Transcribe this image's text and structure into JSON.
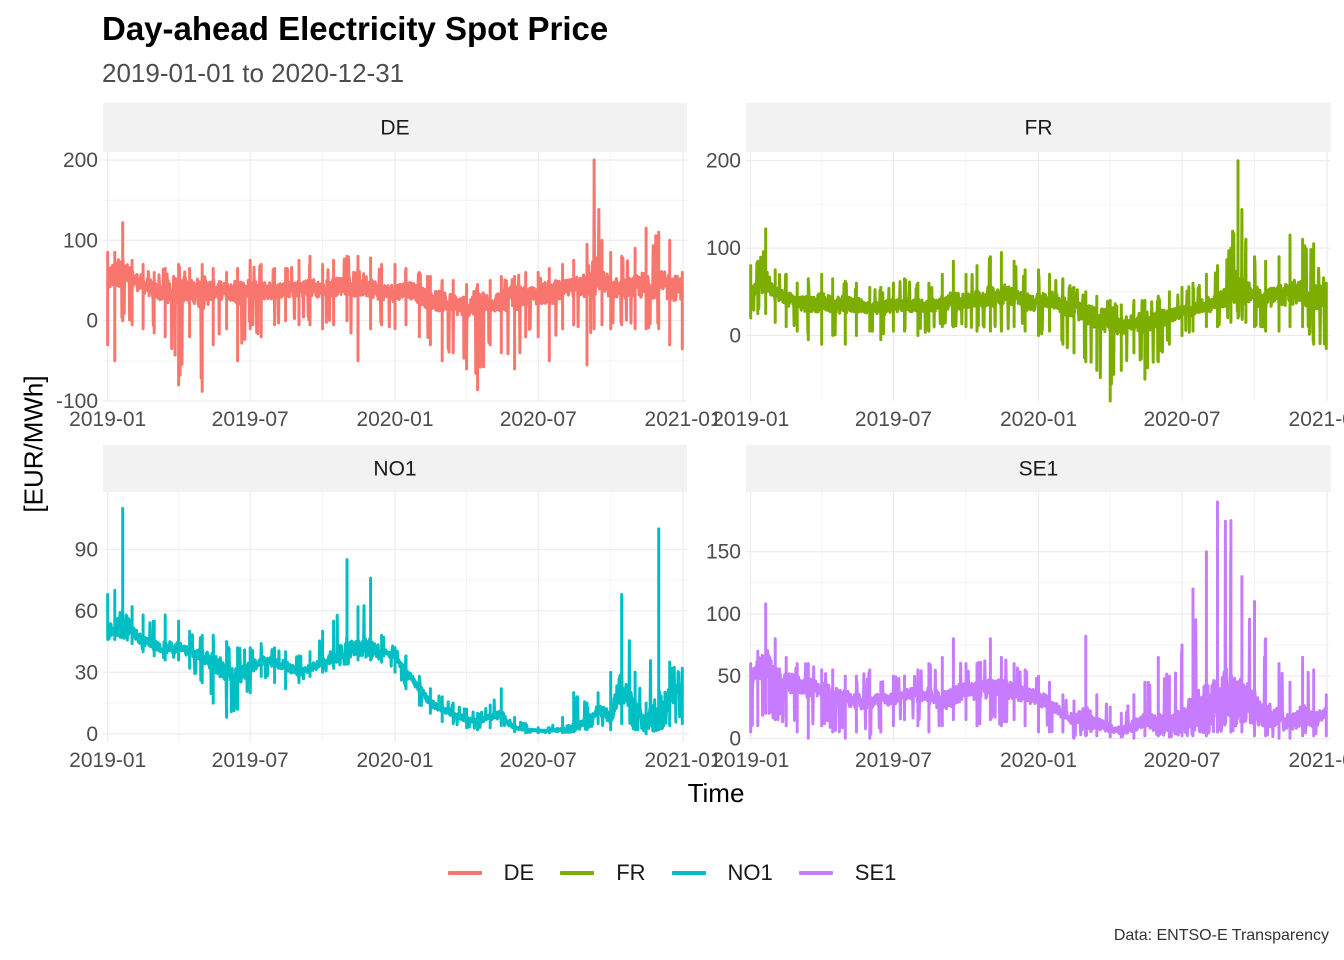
{
  "title": "Day-ahead Electricity Spot Price",
  "subtitle": "2019-01-01 to 2020-12-31",
  "caption": "Data: ENTSO-E Transparency",
  "legend_items": [
    {
      "label": "DE",
      "color": "#F8766D"
    },
    {
      "label": "FR",
      "color": "#7CAE00"
    },
    {
      "label": "NO1",
      "color": "#00BFC4"
    },
    {
      "label": "SE1",
      "color": "#C77CFF"
    }
  ],
  "chart_data": {
    "type": "line",
    "xlabel": "Time",
    "ylabel": "[EUR/MWh]",
    "grid": true,
    "legend_position": "bottom",
    "x_ticks": [
      "2019-01",
      "2019-07",
      "2020-01",
      "2020-07",
      "2021-01"
    ],
    "xlim": [
      "2018-12-26",
      "2021-01-06"
    ],
    "panels": [
      {
        "strip": "DE",
        "color": "#F8766D",
        "ylim": [
          -100,
          210
        ],
        "y_ticks": [
          200,
          100,
          0,
          -100
        ],
        "series": {
          "x": [
            "2019-01-01",
            "2019-01-10",
            "2019-01-20",
            "2019-02-01",
            "2019-02-15",
            "2019-03-01",
            "2019-03-15",
            "2019-04-01",
            "2019-04-15",
            "2019-05-01",
            "2019-05-15",
            "2019-06-01",
            "2019-06-15",
            "2019-07-01",
            "2019-07-15",
            "2019-08-01",
            "2019-08-15",
            "2019-09-01",
            "2019-09-15",
            "2019-10-01",
            "2019-10-15",
            "2019-11-01",
            "2019-11-15",
            "2019-12-01",
            "2019-12-15",
            "2020-01-01",
            "2020-01-15",
            "2020-02-01",
            "2020-02-15",
            "2020-03-01",
            "2020-03-15",
            "2020-04-01",
            "2020-04-15",
            "2020-05-01",
            "2020-05-15",
            "2020-06-01",
            "2020-06-15",
            "2020-07-01",
            "2020-07-15",
            "2020-08-01",
            "2020-08-15",
            "2020-09-01",
            "2020-09-10",
            "2020-09-20",
            "2020-10-01",
            "2020-10-15",
            "2020-11-01",
            "2020-11-15",
            "2020-12-01",
            "2020-12-15",
            "2020-12-31"
          ],
          "center": [
            50,
            58,
            62,
            52,
            45,
            38,
            35,
            40,
            38,
            35,
            38,
            37,
            35,
            40,
            38,
            37,
            38,
            40,
            42,
            38,
            42,
            44,
            46,
            42,
            35,
            35,
            40,
            32,
            25,
            25,
            20,
            18,
            20,
            22,
            25,
            28,
            30,
            32,
            35,
            38,
            42,
            48,
            55,
            50,
            42,
            40,
            42,
            45,
            45,
            42,
            40
          ],
          "low": [
            -30,
            -50,
            0,
            -5,
            -10,
            -15,
            -20,
            -80,
            -20,
            -88,
            -30,
            -10,
            -50,
            -10,
            -20,
            -5,
            0,
            -5,
            -5,
            -10,
            -5,
            0,
            -50,
            -10,
            -5,
            -10,
            -5,
            -20,
            -30,
            -50,
            -40,
            -60,
            -86,
            -30,
            -40,
            -60,
            -20,
            -20,
            -50,
            -10,
            -5,
            -55,
            -10,
            -5,
            -10,
            -5,
            -10,
            -10,
            -10,
            -30,
            -35
          ],
          "high": [
            85,
            85,
            122,
            75,
            70,
            60,
            65,
            70,
            65,
            70,
            65,
            60,
            65,
            75,
            70,
            65,
            65,
            75,
            80,
            70,
            75,
            80,
            80,
            78,
            70,
            70,
            65,
            60,
            55,
            50,
            50,
            45,
            45,
            50,
            55,
            55,
            60,
            60,
            65,
            70,
            75,
            95,
            200,
            100,
            85,
            80,
            90,
            115,
            110,
            100,
            60
          ]
        }
      },
      {
        "strip": "FR",
        "color": "#7CAE00",
        "ylim": [
          -75,
          210
        ],
        "y_ticks": [
          200,
          100,
          0
        ],
        "series": {
          "x": [
            "2019-01-01",
            "2019-01-10",
            "2019-01-20",
            "2019-02-01",
            "2019-02-15",
            "2019-03-01",
            "2019-03-15",
            "2019-04-01",
            "2019-04-15",
            "2019-05-01",
            "2019-05-15",
            "2019-06-01",
            "2019-06-15",
            "2019-07-01",
            "2019-07-15",
            "2019-08-01",
            "2019-08-15",
            "2019-09-01",
            "2019-09-15",
            "2019-10-01",
            "2019-10-15",
            "2019-11-01",
            "2019-11-15",
            "2019-12-01",
            "2019-12-15",
            "2020-01-01",
            "2020-01-15",
            "2020-02-01",
            "2020-02-15",
            "2020-03-01",
            "2020-03-15",
            "2020-04-01",
            "2020-04-15",
            "2020-05-01",
            "2020-05-15",
            "2020-06-01",
            "2020-06-15",
            "2020-07-01",
            "2020-07-15",
            "2020-08-01",
            "2020-08-15",
            "2020-09-01",
            "2020-09-10",
            "2020-09-20",
            "2020-10-01",
            "2020-10-15",
            "2020-11-01",
            "2020-11-15",
            "2020-12-01",
            "2020-12-15",
            "2020-12-31"
          ],
          "center": [
            50,
            55,
            62,
            48,
            42,
            38,
            35,
            38,
            35,
            35,
            35,
            32,
            30,
            35,
            35,
            33,
            32,
            38,
            40,
            38,
            42,
            45,
            48,
            45,
            38,
            38,
            42,
            35,
            30,
            25,
            20,
            15,
            12,
            14,
            16,
            18,
            22,
            28,
            30,
            35,
            38,
            48,
            55,
            50,
            45,
            42,
            45,
            50,
            48,
            45,
            45
          ],
          "low": [
            20,
            25,
            25,
            15,
            10,
            5,
            -5,
            -10,
            0,
            -10,
            0,
            5,
            -5,
            5,
            5,
            0,
            5,
            10,
            10,
            10,
            5,
            5,
            5,
            10,
            5,
            0,
            5,
            -10,
            -20,
            -30,
            -40,
            -75,
            -40,
            -20,
            -50,
            -30,
            -10,
            0,
            5,
            10,
            10,
            15,
            20,
            15,
            10,
            5,
            5,
            10,
            10,
            -10,
            -15
          ],
          "high": [
            80,
            85,
            122,
            75,
            70,
            60,
            65,
            70,
            65,
            62,
            60,
            55,
            55,
            60,
            65,
            60,
            60,
            70,
            85,
            70,
            80,
            90,
            95,
            85,
            75,
            75,
            70,
            65,
            55,
            50,
            45,
            40,
            35,
            40,
            40,
            45,
            50,
            55,
            60,
            70,
            80,
            100,
            200,
            110,
            90,
            85,
            90,
            115,
            110,
            105,
            60
          ]
        }
      },
      {
        "strip": "NO1",
        "color": "#00BFC4",
        "ylim": [
          -4,
          118
        ],
        "y_ticks": [
          90,
          60,
          30,
          0
        ],
        "series": {
          "x": [
            "2019-01-01",
            "2019-01-10",
            "2019-01-20",
            "2019-02-01",
            "2019-02-15",
            "2019-03-01",
            "2019-03-15",
            "2019-04-01",
            "2019-04-15",
            "2019-05-01",
            "2019-05-15",
            "2019-06-01",
            "2019-06-15",
            "2019-07-01",
            "2019-07-15",
            "2019-08-01",
            "2019-08-15",
            "2019-09-01",
            "2019-09-15",
            "2019-10-01",
            "2019-10-15",
            "2019-11-01",
            "2019-11-15",
            "2019-12-01",
            "2019-12-15",
            "2020-01-01",
            "2020-01-15",
            "2020-02-01",
            "2020-02-15",
            "2020-03-01",
            "2020-03-15",
            "2020-04-01",
            "2020-04-15",
            "2020-05-01",
            "2020-05-15",
            "2020-06-01",
            "2020-06-15",
            "2020-07-01",
            "2020-07-15",
            "2020-08-01",
            "2020-08-15",
            "2020-09-01",
            "2020-09-15",
            "2020-10-01",
            "2020-10-15",
            "2020-11-01",
            "2020-11-15",
            "2020-12-01",
            "2020-12-15",
            "2020-12-31"
          ],
          "center": [
            50,
            52,
            55,
            50,
            45,
            43,
            42,
            42,
            40,
            38,
            35,
            30,
            28,
            32,
            36,
            35,
            33,
            30,
            32,
            35,
            38,
            40,
            42,
            42,
            40,
            38,
            30,
            22,
            15,
            12,
            10,
            7,
            6,
            8,
            9,
            3,
            2,
            1.5,
            1.5,
            2,
            3,
            6,
            12,
            8,
            25,
            12,
            6,
            8,
            18,
            22
          ],
          "low": [
            46,
            46,
            47,
            44,
            40,
            38,
            36,
            36,
            32,
            25,
            15,
            8,
            12,
            20,
            28,
            25,
            22,
            25,
            28,
            30,
            32,
            34,
            36,
            36,
            35,
            30,
            22,
            14,
            10,
            6,
            5,
            3,
            2,
            3,
            4,
            1,
            0.5,
            0.5,
            0.5,
            0.5,
            1,
            2,
            5,
            2,
            5,
            2,
            0,
            2,
            4,
            5
          ],
          "high": [
            68,
            70,
            110,
            62,
            58,
            55,
            58,
            55,
            50,
            48,
            48,
            45,
            42,
            42,
            44,
            42,
            40,
            38,
            40,
            50,
            55,
            85,
            62,
            76,
            48,
            42,
            38,
            28,
            22,
            18,
            15,
            12,
            10,
            14,
            22,
            8,
            5,
            3,
            3,
            8,
            20,
            15,
            20,
            30,
            68,
            30,
            15,
            100,
            35,
            32
          ]
        }
      },
      {
        "strip": "SE1",
        "color": "#C77CFF",
        "ylim": [
          -3,
          198
        ],
        "y_ticks": [
          150,
          100,
          50,
          0
        ],
        "series": {
          "x": [
            "2019-01-01",
            "2019-01-10",
            "2019-01-20",
            "2019-02-01",
            "2019-02-15",
            "2019-03-01",
            "2019-03-15",
            "2019-04-01",
            "2019-04-15",
            "2019-05-01",
            "2019-05-15",
            "2019-06-01",
            "2019-06-15",
            "2019-07-01",
            "2019-07-15",
            "2019-08-01",
            "2019-08-15",
            "2019-09-01",
            "2019-09-15",
            "2019-10-01",
            "2019-10-15",
            "2019-11-01",
            "2019-11-15",
            "2019-12-01",
            "2019-12-15",
            "2020-01-01",
            "2020-01-15",
            "2020-02-01",
            "2020-02-15",
            "2020-03-01",
            "2020-03-15",
            "2020-04-01",
            "2020-04-15",
            "2020-05-01",
            "2020-05-15",
            "2020-06-01",
            "2020-06-15",
            "2020-07-01",
            "2020-07-15",
            "2020-08-01",
            "2020-08-15",
            "2020-09-01",
            "2020-09-15",
            "2020-10-01",
            "2020-10-15",
            "2020-11-01",
            "2020-11-15",
            "2020-12-01",
            "2020-12-15",
            "2020-12-31"
          ],
          "center": [
            50,
            55,
            62,
            50,
            45,
            43,
            40,
            40,
            35,
            33,
            30,
            30,
            30,
            32,
            35,
            35,
            33,
            30,
            35,
            38,
            38,
            40,
            40,
            38,
            35,
            32,
            28,
            20,
            15,
            15,
            12,
            8,
            6,
            10,
            15,
            12,
            10,
            15,
            20,
            25,
            30,
            35,
            30,
            25,
            20,
            15,
            12,
            18,
            15,
            20
          ],
          "low": [
            5,
            10,
            20,
            15,
            10,
            5,
            0,
            10,
            5,
            0,
            5,
            0,
            5,
            10,
            15,
            10,
            5,
            10,
            15,
            15,
            10,
            15,
            10,
            15,
            10,
            5,
            5,
            5,
            0,
            2,
            2,
            1,
            1,
            0,
            2,
            2,
            1,
            2,
            2,
            2,
            5,
            5,
            5,
            2,
            2,
            0,
            0,
            2,
            2,
            2
          ],
          "high": [
            60,
            70,
            108,
            80,
            65,
            60,
            60,
            55,
            55,
            50,
            50,
            55,
            45,
            50,
            50,
            55,
            60,
            65,
            80,
            60,
            60,
            80,
            65,
            60,
            55,
            50,
            45,
            35,
            30,
            82,
            35,
            25,
            20,
            35,
            45,
            65,
            50,
            75,
            120,
            150,
            190,
            175,
            130,
            110,
            80,
            60,
            45,
            65,
            55,
            35
          ]
        }
      }
    ]
  }
}
